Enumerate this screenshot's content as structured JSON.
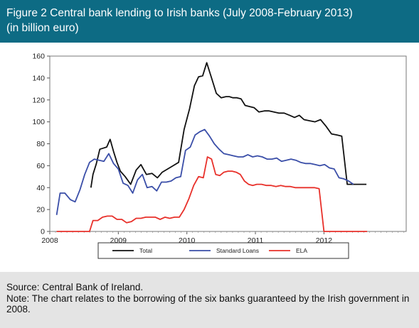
{
  "header": {
    "title": "Figure 2  Central bank lending to Irish banks (July 2008-February 2013)",
    "subtitle": "(in billion euro)"
  },
  "footer": {
    "source": "Source: Central Bank of Ireland.",
    "note": "Note: The chart relates to the borrowing of the six banks guaranteed  by the Irish government in 2008."
  },
  "chart_data": {
    "type": "line",
    "title": "",
    "xlabel": "",
    "ylabel": "",
    "xlim": [
      2008.0,
      2013.2
    ],
    "ylim": [
      0,
      160
    ],
    "y_ticks": [
      0,
      20,
      40,
      60,
      80,
      100,
      120,
      140,
      160
    ],
    "x_tick_labels": [
      "2008",
      "2009",
      "2010",
      "2011",
      "2012"
    ],
    "x_tick_values": [
      2008,
      2009,
      2010,
      2011,
      2012
    ],
    "grid": false,
    "legend_position": "bottom",
    "series": [
      {
        "name": "Total",
        "color": "#111111",
        "x": [
          2008.6,
          2008.63,
          2008.68,
          2008.73,
          2008.78,
          2008.83,
          2008.88,
          2008.93,
          2008.98,
          2009.03,
          2009.1,
          2009.18,
          2009.26,
          2009.33,
          2009.41,
          2009.49,
          2009.57,
          2009.64,
          2009.72,
          2009.8,
          2009.88,
          2009.96,
          2010.04,
          2010.11,
          2010.17,
          2010.23,
          2010.29,
          2010.36,
          2010.43,
          2010.5,
          2010.57,
          2010.62,
          2010.67,
          2010.73,
          2010.79,
          2010.85,
          2010.91,
          2010.98,
          2011.05,
          2011.13,
          2011.2,
          2011.27,
          2011.34,
          2011.42,
          2011.5,
          2011.57,
          2011.64,
          2011.71,
          2011.79,
          2011.87,
          2011.95,
          2012.03,
          2012.11,
          2012.19,
          2012.26,
          2012.34,
          2012.41,
          2012.49,
          2012.55,
          2012.62
        ],
        "values": [
          40,
          52,
          62,
          75,
          76,
          77,
          84,
          73,
          63,
          55,
          50,
          43,
          56,
          61,
          52,
          53,
          49,
          54,
          57,
          60,
          63,
          93,
          112,
          133,
          141,
          142,
          154,
          140,
          126,
          122,
          123,
          123,
          122,
          122,
          121,
          115,
          114,
          113,
          109,
          110,
          110,
          109,
          108,
          108,
          106,
          104,
          106,
          102,
          101,
          100,
          102,
          96,
          89,
          88,
          87,
          43,
          43,
          43,
          43,
          43
        ],
        "render_note": ""
      },
      {
        "name": "Standard Loans",
        "color": "#3a4ea8",
        "x": [
          2008.1,
          2008.15,
          2008.22,
          2008.3,
          2008.37,
          2008.44,
          2008.51,
          2008.58,
          2008.65,
          2008.72,
          2008.79,
          2008.86,
          2008.93,
          2009.0,
          2009.07,
          2009.14,
          2009.21,
          2009.28,
          2009.35,
          2009.42,
          2009.49,
          2009.56,
          2009.63,
          2009.7,
          2009.77,
          2009.84,
          2009.91,
          2009.98,
          2010.05,
          2010.12,
          2010.19,
          2010.26,
          2010.33,
          2010.4,
          2010.47,
          2010.54,
          2010.61,
          2010.68,
          2010.75,
          2010.82,
          2010.89,
          2010.96,
          2011.03,
          2011.1,
          2011.17,
          2011.24,
          2011.31,
          2011.38,
          2011.45,
          2011.52,
          2011.59,
          2011.66,
          2011.73,
          2011.8,
          2011.87,
          2011.94,
          2012.01,
          2012.08,
          2012.15,
          2012.22,
          2012.29,
          2012.36,
          2012.43
        ],
        "values": [
          15,
          35,
          35,
          29,
          27,
          38,
          52,
          63,
          66,
          65,
          64,
          71,
          62,
          57,
          44,
          42,
          35,
          47,
          52,
          40,
          41,
          37,
          45,
          45,
          46,
          49,
          50,
          74,
          77,
          88,
          91,
          93,
          87,
          80,
          75,
          71,
          70,
          69,
          68,
          68,
          70,
          68,
          69,
          68,
          66,
          66,
          67,
          64,
          65,
          66,
          65,
          63,
          62,
          62,
          61,
          60,
          61,
          58,
          57,
          49,
          48,
          46,
          43
        ],
        "render_note": ""
      },
      {
        "name": "ELA",
        "color": "#e8302a",
        "x": [
          2008.1,
          2008.58,
          2008.63,
          2008.7,
          2008.77,
          2008.84,
          2008.91,
          2008.98,
          2009.05,
          2009.12,
          2009.19,
          2009.26,
          2009.33,
          2009.4,
          2009.47,
          2009.54,
          2009.61,
          2009.68,
          2009.75,
          2009.82,
          2009.89,
          2009.96,
          2010.03,
          2010.1,
          2010.17,
          2010.24,
          2010.3,
          2010.36,
          2010.42,
          2010.48,
          2010.54,
          2010.6,
          2010.66,
          2010.72,
          2010.78,
          2010.84,
          2010.9,
          2010.96,
          2011.02,
          2011.09,
          2011.16,
          2011.23,
          2011.3,
          2011.37,
          2011.44,
          2011.51,
          2011.58,
          2011.65,
          2011.72,
          2011.79,
          2011.86,
          2011.93,
          2012.0,
          2012.07,
          2012.14,
          2012.21,
          2012.28,
          2012.35,
          2012.42,
          2012.49,
          2012.56,
          2012.63
        ],
        "values": [
          0,
          0,
          10,
          10,
          13,
          14,
          14,
          11,
          11,
          8,
          9,
          12,
          12,
          13,
          13,
          13,
          11,
          13,
          12,
          13,
          13,
          20,
          30,
          42,
          50,
          49,
          68,
          66,
          52,
          51,
          54,
          55,
          55,
          54,
          52,
          46,
          43,
          42,
          43,
          43,
          42,
          42,
          41,
          42,
          41,
          41,
          40,
          40,
          40,
          40,
          40,
          39,
          0,
          0,
          0,
          0,
          0,
          0,
          0,
          0,
          0,
          0
        ],
        "render_note": ""
      }
    ]
  }
}
